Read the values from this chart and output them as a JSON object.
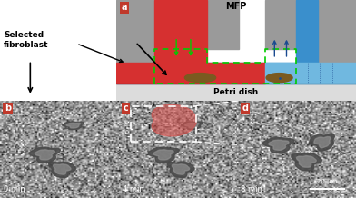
{
  "panel_a": {
    "label": "a",
    "mfp_label": "MFP",
    "petri_label": "Petri dish",
    "selected_label": "Selected\nfibroblast",
    "gray_color": "#9a9a9a",
    "red_color": "#d63030",
    "blue_color": "#3a8fcc",
    "light_blue": "#70b8e0",
    "green_color": "#00cc00",
    "dark_blue_arrow": "#1a4a90",
    "petri_color": "#dcdcdc",
    "cell_color": "#7a5a20",
    "outline_color": "#222222"
  },
  "panel_b": {
    "label": "b",
    "time": "0 min"
  },
  "panel_c": {
    "label": "c",
    "time": "4 min",
    "overlay_color": "#d9534f",
    "overlay_alpha": 0.6
  },
  "panel_d": {
    "label": "d",
    "time": "8 min",
    "scalebar_text": "20 μm"
  },
  "label_bg": "#c0392b",
  "label_fg": "white",
  "fig_bg": "white",
  "anno_text": "Selected\nfibroblast"
}
